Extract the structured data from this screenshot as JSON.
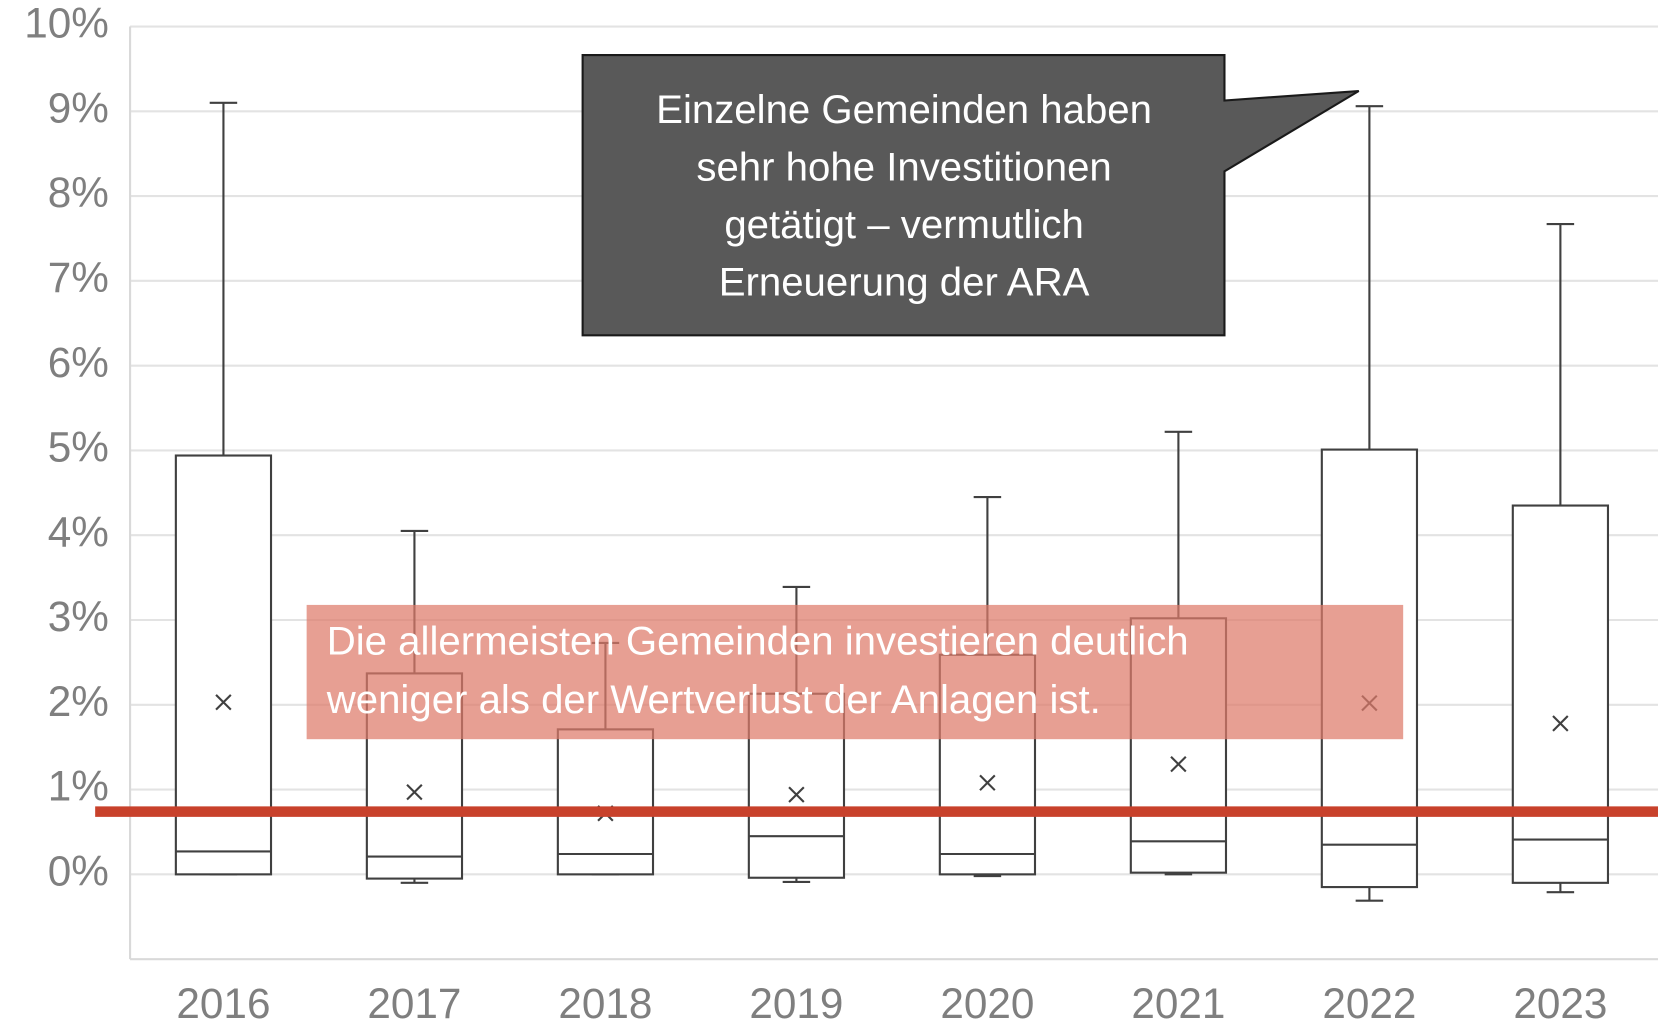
{
  "chart_data": {
    "type": "box",
    "categories": [
      "2016",
      "2017",
      "2018",
      "2019",
      "2020",
      "2021",
      "2022",
      "2023"
    ],
    "boxes": {
      "min": [
        0,
        -0.1,
        0,
        -0.09,
        -0.02,
        0,
        -0.31,
        -0.21
      ],
      "q1": [
        0,
        -0.05,
        0,
        -0.04,
        0,
        0.02,
        -0.15,
        -0.1
      ],
      "median": [
        0.27,
        0.21,
        0.24,
        0.45,
        0.24,
        0.39,
        0.35,
        0.41
      ],
      "q3": [
        4.94,
        2.37,
        1.71,
        2.13,
        2.59,
        3.02,
        5.01,
        4.35
      ],
      "max": [
        9.1,
        4.05,
        2.73,
        3.39,
        4.45,
        5.22,
        9.06,
        7.67
      ],
      "mean": [
        2.03,
        0.97,
        0.72,
        0.94,
        1.08,
        1.3,
        2.02,
        1.78
      ]
    },
    "box_color": "#404040",
    "ylim": [
      -1,
      10
    ],
    "yticks": [
      {
        "value": 0,
        "label": "0%"
      },
      {
        "value": 1,
        "label": "1%"
      },
      {
        "value": 2,
        "label": "2%"
      },
      {
        "value": 3,
        "label": "3%"
      },
      {
        "value": 4,
        "label": "4%"
      },
      {
        "value": 5,
        "label": "5%"
      },
      {
        "value": 6,
        "label": "6%"
      },
      {
        "value": 7,
        "label": "7%"
      },
      {
        "value": 8,
        "label": "8%"
      },
      {
        "value": 9,
        "label": "9%"
      },
      {
        "value": 10,
        "label": "10%"
      }
    ],
    "grid": true,
    "reference_line": {
      "value": 0.74,
      "color": "#c8412b"
    },
    "annotations": [
      {
        "lines": [
          "Einzelne Gemeinden haben",
          "sehr hohe Investitionen",
          "getätigt – vermutlich",
          "Erneuerung der ARA"
        ]
      },
      {
        "lines": [
          "Die allermeisten Gemeinden investieren deutlich",
          "weniger als der Wertverlust der Anlagen ist."
        ]
      }
    ]
  }
}
